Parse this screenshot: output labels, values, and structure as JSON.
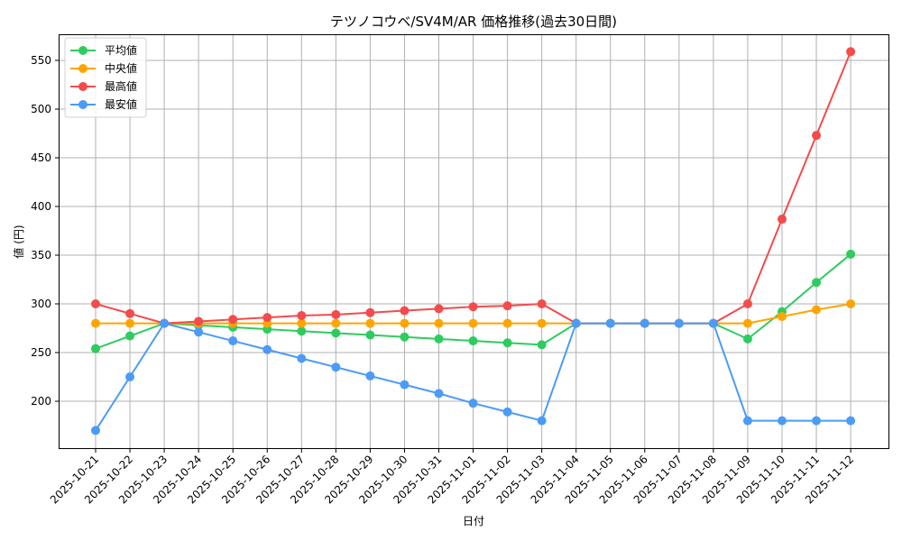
{
  "chart_data": {
    "type": "line",
    "title": "テツノコウベ/SV4M/AR 価格推移(過去30日間)",
    "xlabel": "日付",
    "ylabel": "値 (円)",
    "ylim": [
      150,
      580
    ],
    "yticks": [
      200,
      250,
      300,
      350,
      400,
      450,
      500,
      550
    ],
    "grid": true,
    "legend_position": "upper left",
    "categories": [
      "2025-10-21",
      "2025-10-22",
      "2025-10-23",
      "2025-10-24",
      "2025-10-25",
      "2025-10-26",
      "2025-10-27",
      "2025-10-28",
      "2025-10-29",
      "2025-10-30",
      "2025-10-31",
      "2025-11-01",
      "2025-11-02",
      "2025-11-03",
      "2025-11-04",
      "2025-11-05",
      "2025-11-06",
      "2025-11-07",
      "2025-11-08",
      "2025-11-09",
      "2025-11-10",
      "2025-11-11",
      "2025-11-12"
    ],
    "series": [
      {
        "name": "平均値",
        "color": "#2ecc5f",
        "values": [
          254,
          267,
          280,
          278,
          276,
          274,
          272,
          270,
          268,
          266,
          264,
          262,
          260,
          258,
          280,
          280,
          280,
          280,
          280,
          264,
          292,
          322,
          351
        ]
      },
      {
        "name": "中央値",
        "color": "#ffa500",
        "values": [
          280,
          280,
          280,
          280,
          280,
          280,
          280,
          280,
          280,
          280,
          280,
          280,
          280,
          280,
          280,
          280,
          280,
          280,
          280,
          280,
          287,
          294,
          300
        ]
      },
      {
        "name": "最高値",
        "color": "#f44b4b",
        "values": [
          300,
          290,
          280,
          282,
          284,
          286,
          288,
          289,
          291,
          293,
          295,
          297,
          298,
          300,
          280,
          280,
          280,
          280,
          280,
          300,
          387,
          473,
          559
        ]
      },
      {
        "name": "最安値",
        "color": "#4b9bf7",
        "values": [
          170,
          225,
          280,
          271,
          262,
          253,
          244,
          235,
          226,
          217,
          208,
          198,
          189,
          180,
          280,
          280,
          280,
          280,
          280,
          180,
          180,
          180,
          180
        ]
      }
    ]
  }
}
